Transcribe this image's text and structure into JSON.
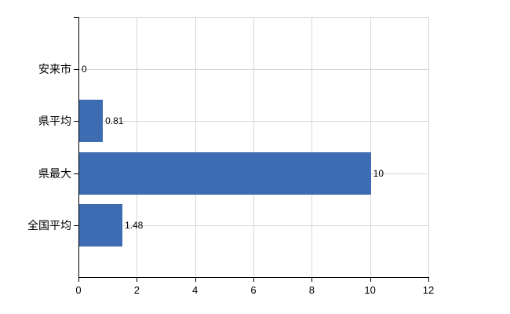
{
  "chart_data": {
    "type": "bar",
    "orientation": "horizontal",
    "title": "",
    "xlabel": "",
    "ylabel": "",
    "categories": [
      "安来市",
      "県平均",
      "県最大",
      "全国平均"
    ],
    "values": [
      0,
      0.81,
      10,
      1.48
    ],
    "value_labels": [
      "0",
      "0.81",
      "10",
      "1.48"
    ],
    "xlim": [
      0,
      12
    ],
    "x_ticks": [
      "0",
      "2",
      "4",
      "6",
      "8",
      "10",
      "12"
    ],
    "x_tick_values": [
      0,
      2,
      4,
      6,
      8,
      10,
      12
    ],
    "grid": true,
    "legend": false,
    "colors": {
      "bar": "#3d6cb2",
      "grid": "#d6d6d6",
      "axis": "#000000",
      "text": "#000000",
      "background": "#ffffff"
    }
  }
}
